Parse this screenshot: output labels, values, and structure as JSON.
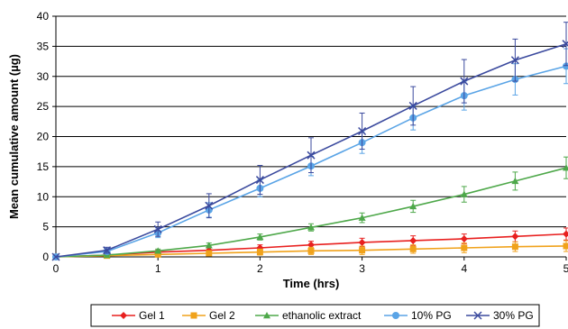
{
  "chart_data": {
    "type": "line",
    "xlabel": "Time (hrs)",
    "ylabel": "Mean cumulative amount (µg)",
    "xlim": [
      0,
      5
    ],
    "ylim": [
      0,
      40
    ],
    "xticks": [
      0,
      1,
      2,
      3,
      4,
      5
    ],
    "yticks": [
      0,
      5,
      10,
      15,
      20,
      25,
      30,
      35,
      40
    ],
    "grid": "horizontal",
    "legend_position": "bottom",
    "x": [
      0,
      0.5,
      1,
      1.5,
      2,
      2.5,
      3,
      3.5,
      4,
      4.5,
      5
    ],
    "series": [
      {
        "name": "Gel 1",
        "color": "#e8201f",
        "marker": "diamond",
        "values": [
          0,
          0.3,
          0.8,
          1.1,
          1.5,
          2.0,
          2.4,
          2.7,
          3.0,
          3.4,
          3.8
        ],
        "errors": [
          0,
          0.2,
          0.3,
          0.4,
          0.5,
          0.6,
          0.7,
          0.8,
          0.8,
          0.9,
          1.0
        ]
      },
      {
        "name": "Gel 2",
        "color": "#f0a21b",
        "marker": "square",
        "values": [
          0,
          0.2,
          0.4,
          0.6,
          0.8,
          1.0,
          1.1,
          1.3,
          1.5,
          1.7,
          1.8
        ],
        "errors": [
          0,
          0.2,
          0.3,
          0.4,
          0.5,
          0.6,
          0.7,
          0.7,
          0.8,
          0.8,
          0.9
        ]
      },
      {
        "name": "ethanolic extract",
        "color": "#4ea84a",
        "marker": "triangle",
        "values": [
          0,
          0.3,
          1.0,
          1.9,
          3.3,
          4.9,
          6.5,
          8.4,
          10.4,
          12.6,
          14.8
        ],
        "errors": [
          0,
          0.2,
          0.3,
          0.4,
          0.5,
          0.6,
          0.8,
          1.0,
          1.3,
          1.5,
          1.8
        ]
      },
      {
        "name": "10% PG",
        "color": "#5aa4e6",
        "marker": "circle",
        "values": [
          0,
          0.9,
          4.0,
          7.8,
          11.4,
          15.1,
          19.0,
          23.1,
          26.8,
          29.5,
          31.7
        ],
        "errors": [
          0,
          0.4,
          0.8,
          1.2,
          1.4,
          1.6,
          1.8,
          2.0,
          2.4,
          2.6,
          2.9
        ]
      },
      {
        "name": "30% PG",
        "color": "#3b4a9e",
        "marker": "x",
        "values": [
          0,
          1.1,
          4.6,
          8.5,
          12.8,
          16.9,
          20.9,
          25.1,
          29.2,
          32.7,
          35.4
        ],
        "errors": [
          0,
          0.5,
          1.2,
          2.0,
          2.4,
          2.9,
          3.0,
          3.2,
          3.6,
          3.5,
          3.6
        ]
      }
    ]
  }
}
